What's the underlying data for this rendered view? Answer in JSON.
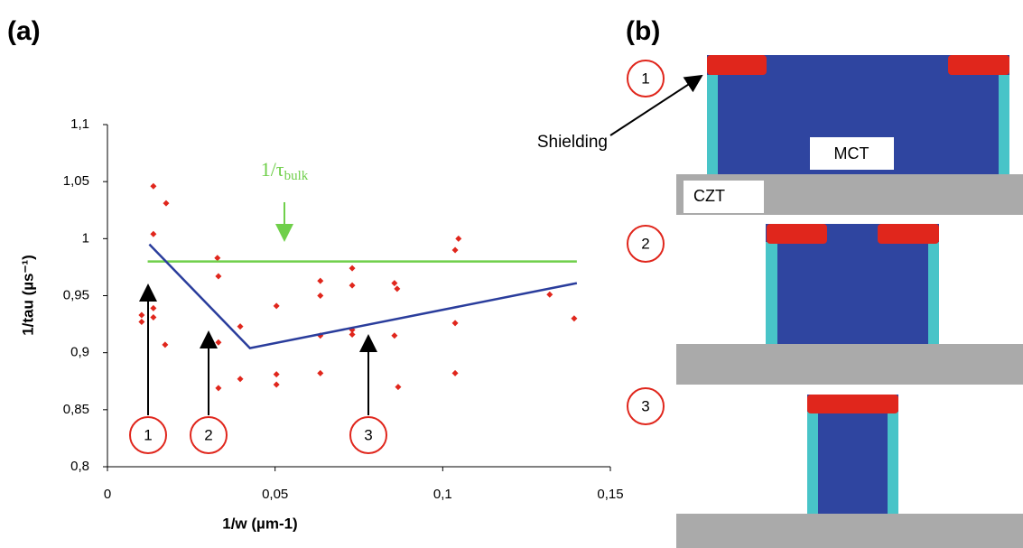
{
  "panel_a": "(a)",
  "chart_data": {
    "type": "scatter",
    "xlabel": "1/w (µm-1)",
    "ylabel": "1/tau (µs⁻¹)",
    "xlim": [
      0,
      0.15
    ],
    "ylim": [
      0.8,
      1.1
    ],
    "xticks": [
      0,
      {
        "value": 0.05,
        "label": "0,05"
      },
      {
        "value": 0.1,
        "label": "0,1"
      },
      {
        "value": 0.15,
        "label": "0,15"
      }
    ],
    "yticks": [
      {
        "value": 0.8,
        "label": "0,8"
      },
      {
        "value": 0.85,
        "label": "0,85"
      },
      {
        "value": 0.9,
        "label": "0,9"
      },
      {
        "value": 0.95,
        "label": "0,95"
      },
      1,
      {
        "value": 1.05,
        "label": "1,05"
      },
      {
        "value": 1.1,
        "label": "1,1"
      }
    ],
    "series": [
      {
        "kind": "points",
        "color": "#e0261c",
        "x": [
          0.0102,
          0.0102,
          0.0137,
          0.0137,
          0.0137,
          0.0137,
          0.0175,
          0.0172,
          0.0328,
          0.0331,
          0.0331,
          0.0331,
          0.0396,
          0.0396,
          0.0504,
          0.0504,
          0.0504,
          0.0635,
          0.0635,
          0.0635,
          0.0635,
          0.073,
          0.073,
          0.073,
          0.073,
          0.0856,
          0.0864,
          0.0856,
          0.0867,
          0.1037,
          0.1047,
          0.1037,
          0.1037,
          0.1319,
          0.1392
        ],
        "values": [
          0.933,
          0.927,
          1.046,
          1.004,
          0.939,
          0.931,
          1.031,
          0.907,
          0.983,
          0.967,
          0.909,
          0.869,
          0.923,
          0.877,
          0.941,
          0.881,
          0.872,
          0.963,
          0.95,
          0.915,
          0.882,
          0.974,
          0.959,
          0.92,
          0.916,
          0.961,
          0.956,
          0.915,
          0.87,
          0.99,
          1.0,
          0.926,
          0.882,
          0.951,
          0.93
        ]
      },
      {
        "kind": "line",
        "color": "#6fcf4a",
        "x": [
          0.012,
          0.14
        ],
        "values": [
          0.98,
          0.98
        ]
      },
      {
        "kind": "line",
        "color": "#2a3d9c",
        "x": [
          0.0125,
          0.0425,
          0.14
        ],
        "values": [
          0.995,
          0.904,
          0.961
        ]
      }
    ],
    "annotations": {
      "bulk": "1/τ",
      "bulk_sub": "bulk",
      "callouts": [
        "1",
        "2",
        "3"
      ]
    }
  },
  "diagram": {
    "title": "(b)",
    "steps": [
      "1",
      "2",
      "3"
    ],
    "shielding": "Shielding",
    "mct": "MCT",
    "czt": "CZT"
  }
}
